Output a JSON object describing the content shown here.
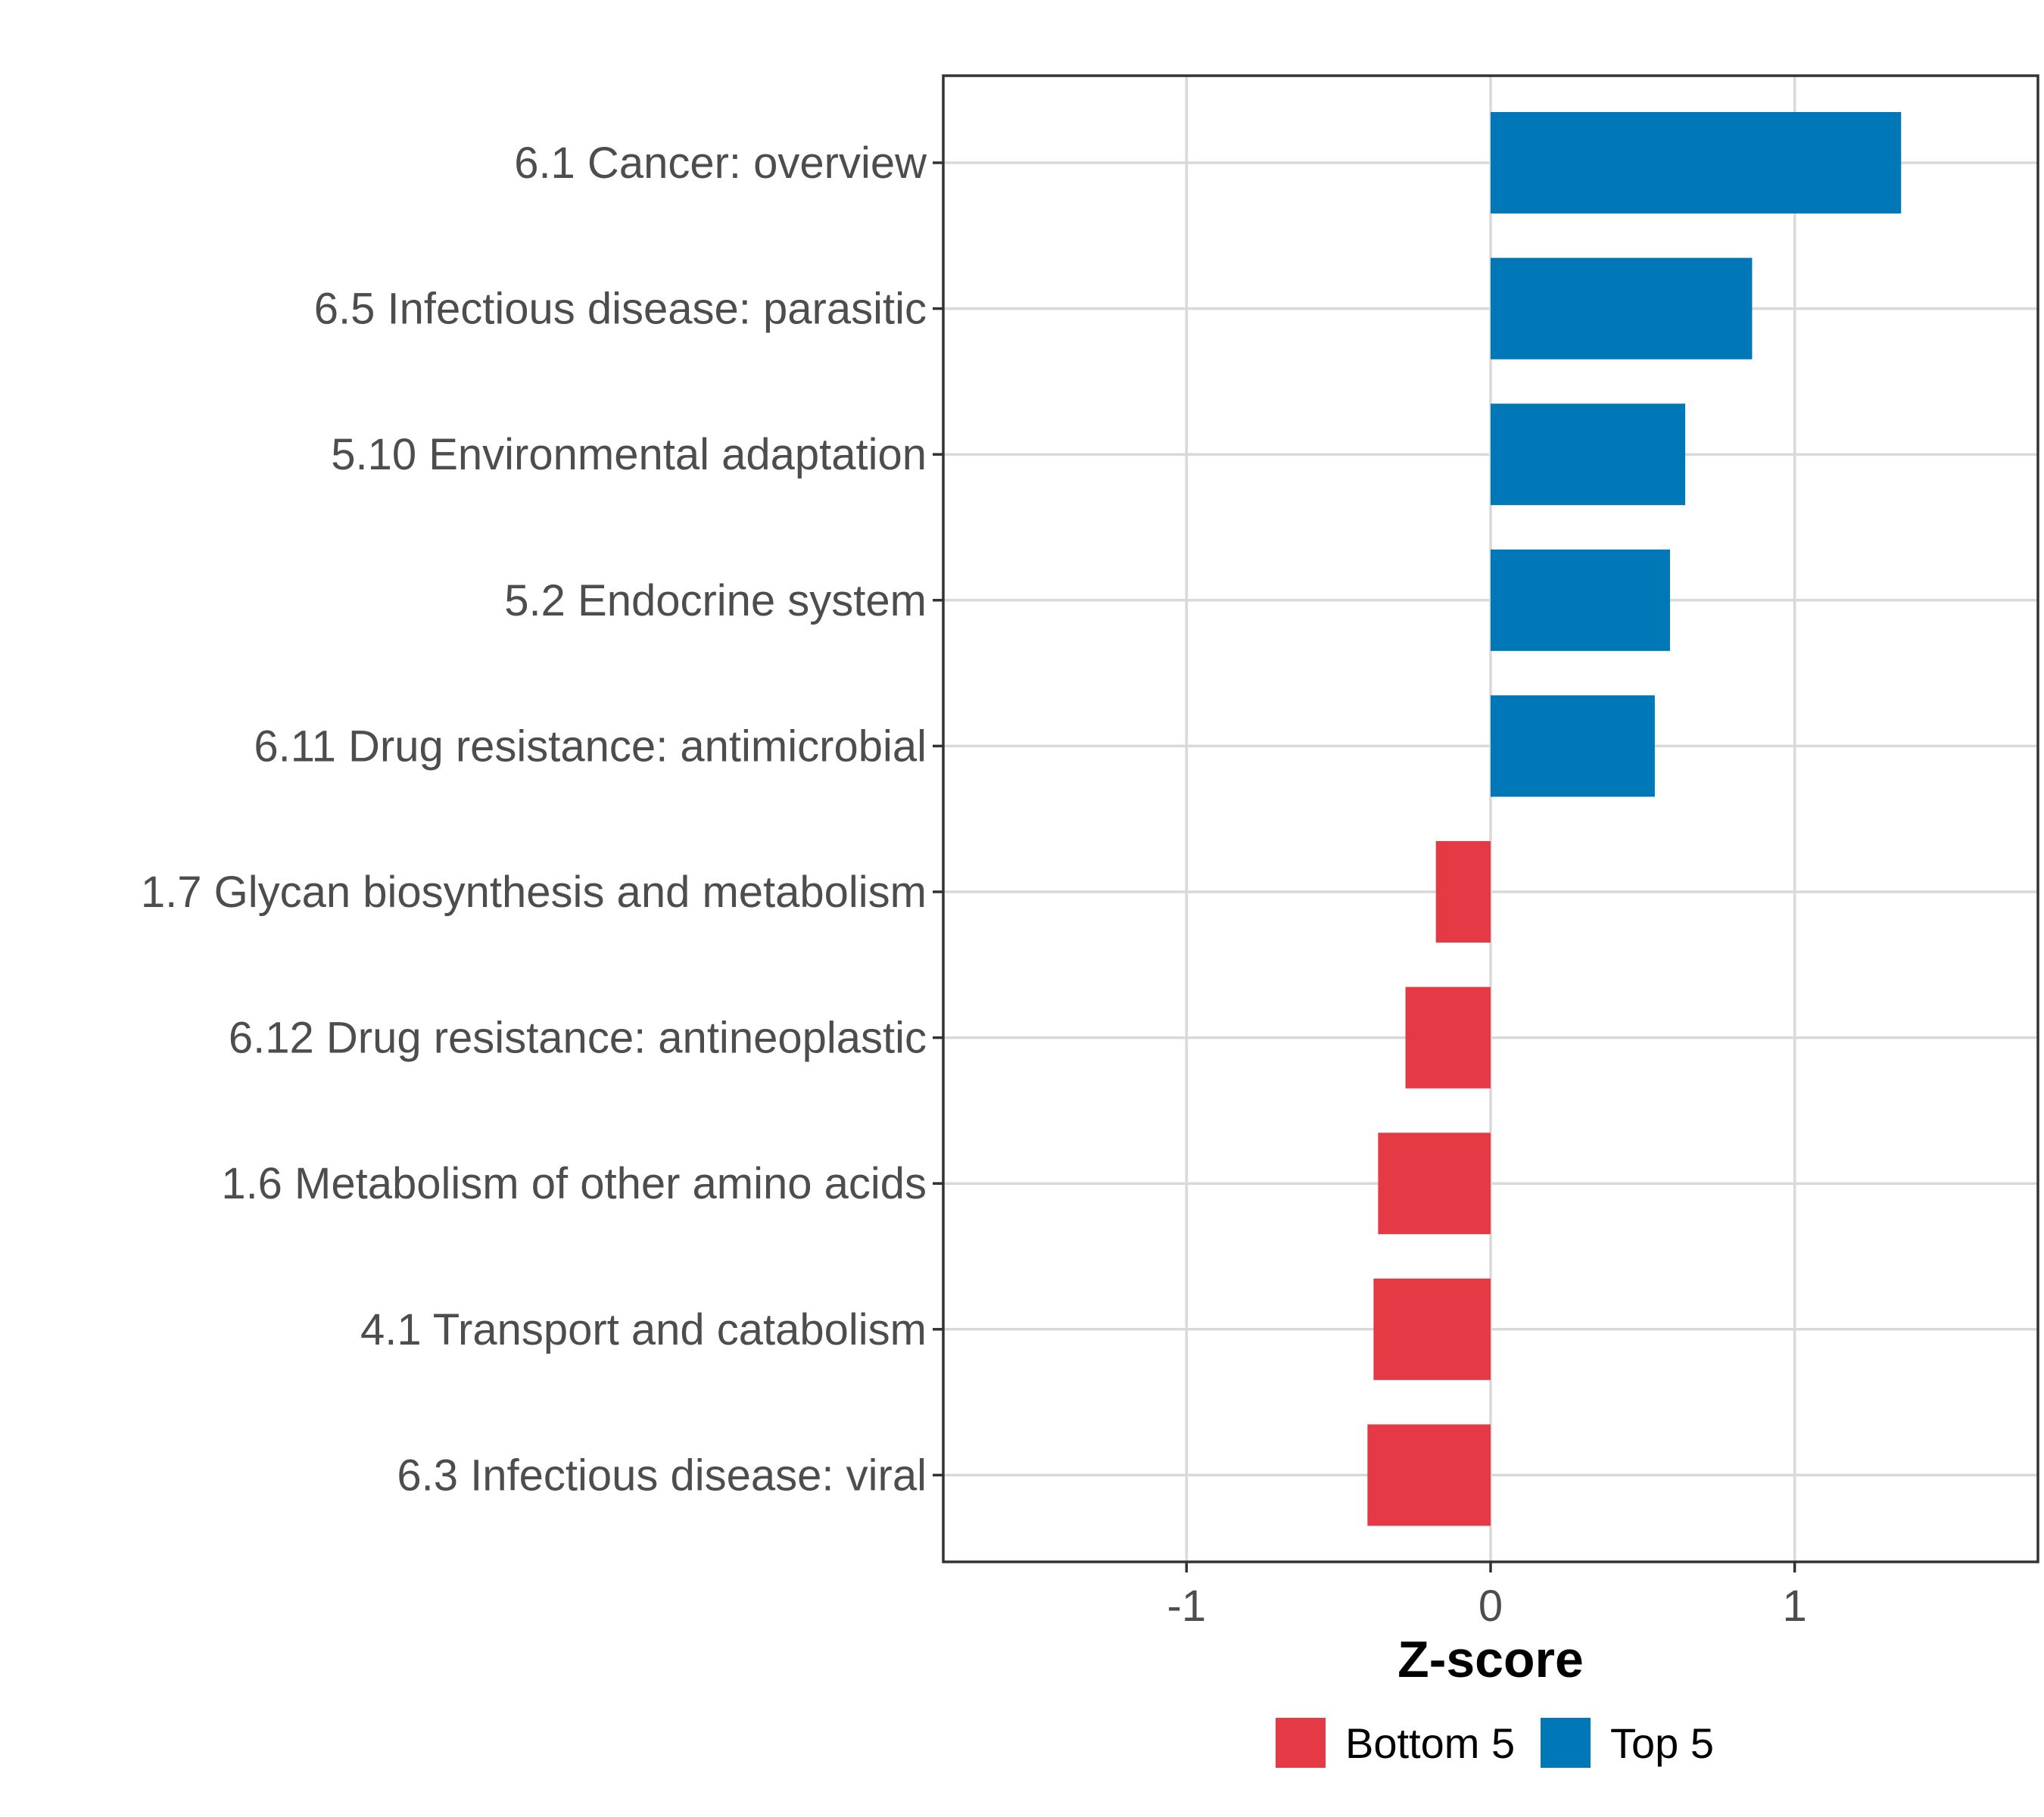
{
  "chart_data": {
    "type": "bar",
    "orientation": "horizontal",
    "title": "",
    "xlabel": "Z-score",
    "ylabel": "",
    "xlim": [
      -1.8,
      1.8
    ],
    "xticks": [
      -1,
      0,
      1
    ],
    "xtick_labels": [
      "-1",
      "0",
      "1"
    ],
    "grid": true,
    "legend_position": "bottom",
    "categories": [
      "6.1 Cancer: overview",
      "6.5 Infectious disease: parasitic",
      "5.10 Environmental adaptation",
      "5.2 Endocrine system",
      "6.11 Drug resistance: antimicrobial",
      "1.7 Glycan biosynthesis and metabolism",
      "6.12 Drug resistance: antineoplastic",
      "1.6 Metabolism of other amino acids",
      "4.1 Transport and catabolism",
      "6.3 Infectious disease: viral"
    ],
    "values": [
      1.35,
      0.86,
      0.64,
      0.59,
      0.54,
      -0.18,
      -0.28,
      -0.37,
      -0.385,
      -0.405
    ],
    "groups": [
      "Top 5",
      "Top 5",
      "Top 5",
      "Top 5",
      "Top 5",
      "Bottom 5",
      "Bottom 5",
      "Bottom 5",
      "Bottom 5",
      "Bottom 5"
    ],
    "legend": [
      {
        "name": "Bottom 5",
        "color": "#E63946"
      },
      {
        "name": "Top 5",
        "color": "#0077B6"
      }
    ]
  }
}
